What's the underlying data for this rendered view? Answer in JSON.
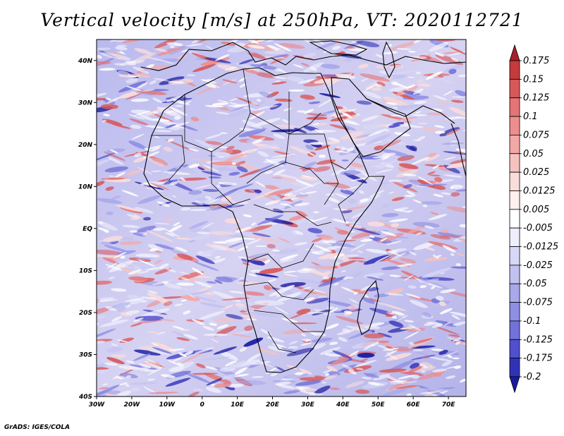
{
  "title": "Vertical velocity [m/s] at 250hPa, VT: 2020112721",
  "credit": "GrADS: IGES/COLA",
  "map": {
    "lon_range": [
      -30,
      75
    ],
    "lat_range": [
      -40,
      45
    ],
    "lat_ticks": [
      "40N",
      "30N",
      "20N",
      "10N",
      "EQ",
      "10S",
      "20S",
      "30S",
      "40S"
    ],
    "lon_ticks": [
      "30W",
      "20W",
      "10W",
      "0",
      "10E",
      "20E",
      "30E",
      "40E",
      "50E",
      "60E",
      "70E"
    ],
    "lat_values": [
      40,
      30,
      20,
      10,
      0,
      -10,
      -20,
      -30,
      -40
    ],
    "lon_values": [
      -30,
      -20,
      -10,
      0,
      10,
      20,
      30,
      40,
      50,
      60,
      70
    ]
  },
  "colorbar": {
    "labels": [
      "0.175",
      "0.15",
      "0.125",
      "0.1",
      "0.075",
      "0.05",
      "0.025",
      "0.0125",
      "0.005",
      "-0.005",
      "-0.0125",
      "-0.025",
      "-0.05",
      "-0.075",
      "-0.1",
      "-0.125",
      "-0.175",
      "-0.2"
    ],
    "colors": [
      "#a8202a",
      "#c63a3c",
      "#d8585a",
      "#e47476",
      "#ec8e8e",
      "#f2a8a6",
      "#f6c2c0",
      "#fadcda",
      "#fdf0ef",
      "#ffffff",
      "#eeeefc",
      "#d8d8f6",
      "#c2c2f0",
      "#a8a8ea",
      "#8e8ee4",
      "#7272da",
      "#5050cc",
      "#3232b8",
      "#1a1aa0"
    ]
  }
}
